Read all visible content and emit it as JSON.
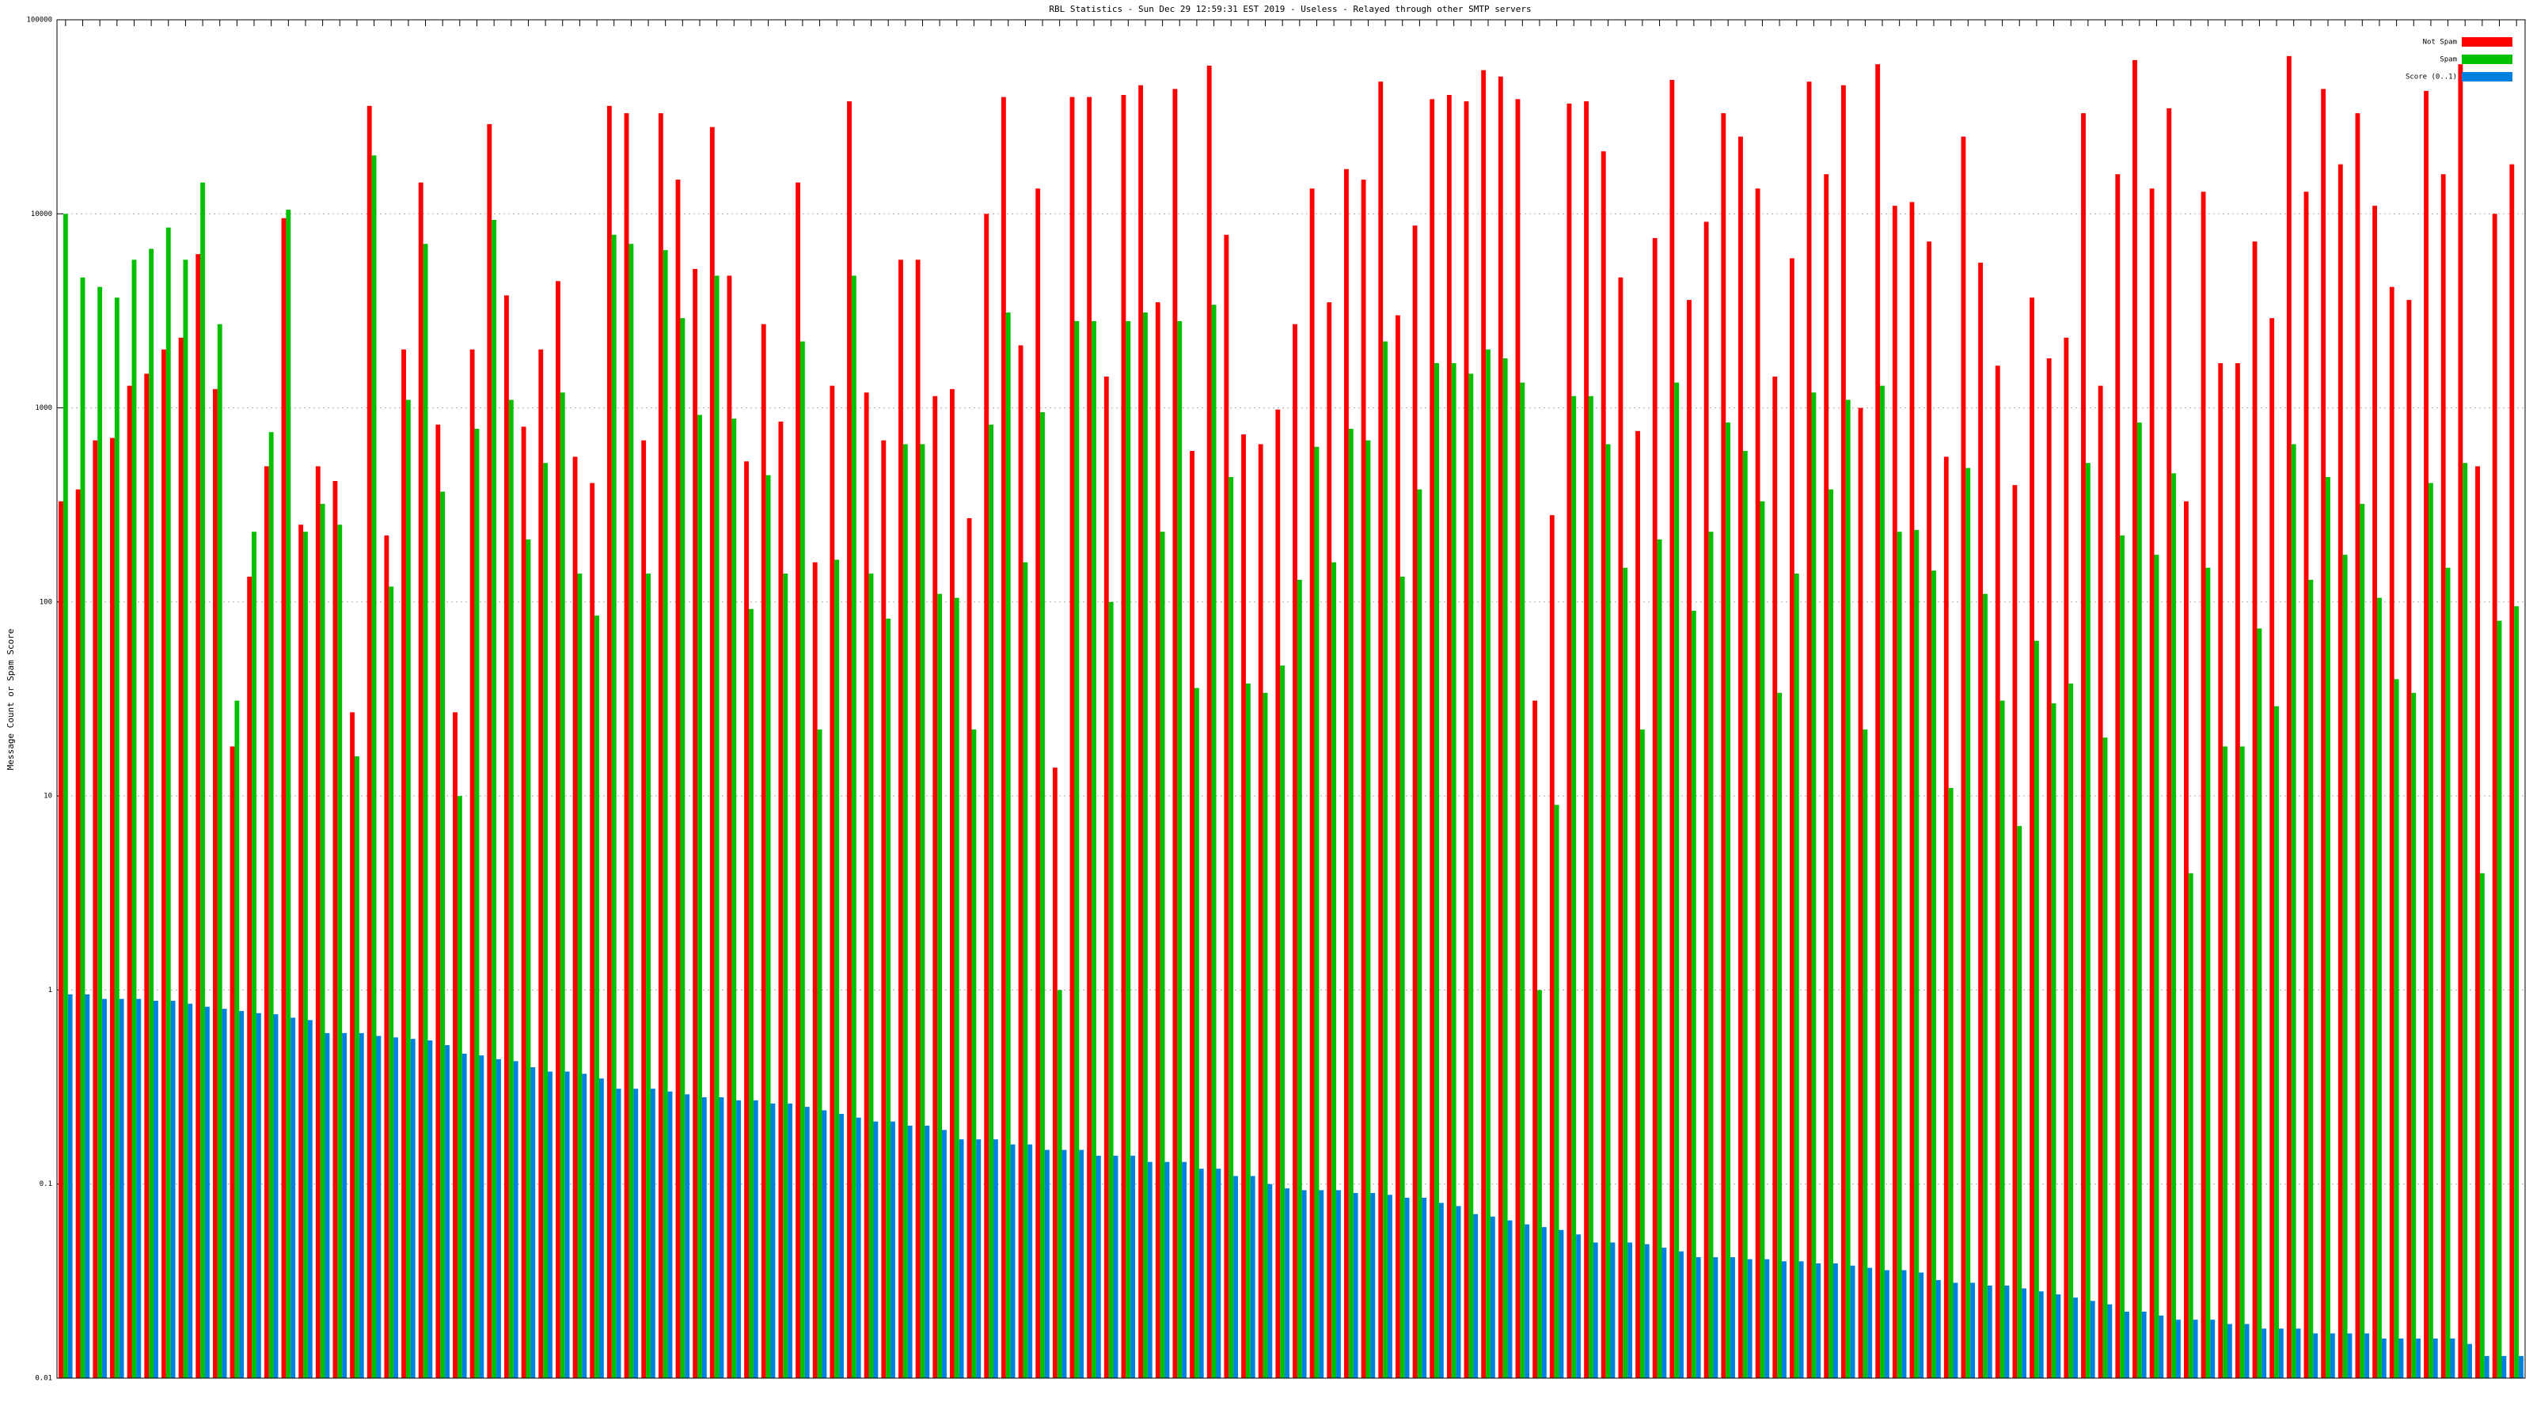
{
  "chart_data": {
    "type": "bar",
    "title": "RBL Statistics - Sun Dec 29 12:59:31 EST 2019 - Useless - Relayed through other SMTP servers",
    "y_label": "Message Count or Spam Score",
    "log_scale": true,
    "grid": true,
    "legend": "top-right",
    "ylim": [
      0.01,
      100000
    ],
    "yticks": [
      0.01,
      0.1,
      1,
      10,
      100,
      1000,
      10000,
      100000
    ],
    "categories": [
      null,
      null,
      null,
      null,
      null,
      null,
      null,
      null,
      null,
      null,
      null,
      null,
      null,
      null,
      null,
      null,
      null,
      null,
      null,
      null,
      null,
      null,
      null,
      null,
      null,
      null,
      null,
      null,
      null,
      null,
      null,
      null,
      null,
      null,
      null,
      null,
      null,
      null,
      null,
      null,
      null,
      null,
      null,
      null,
      null,
      null,
      null,
      null,
      null,
      null,
      null,
      null,
      null,
      null,
      null,
      null,
      null,
      null,
      null,
      null,
      null,
      null,
      null,
      null,
      null,
      null,
      null,
      null,
      null,
      null,
      null,
      null,
      null,
      null,
      null,
      null,
      null,
      null,
      null,
      null,
      null,
      null,
      null,
      null,
      null,
      null,
      null,
      null,
      null,
      null,
      null,
      null,
      null,
      null,
      null,
      null,
      null,
      null,
      null,
      null,
      null,
      null,
      null,
      null,
      null,
      null,
      null,
      null,
      null,
      null,
      null,
      null,
      null,
      null,
      null,
      null,
      null,
      null,
      null,
      null,
      null,
      null,
      null,
      null,
      null,
      null,
      null,
      null,
      null,
      null,
      null,
      null,
      null,
      null,
      null,
      null,
      null,
      null,
      null,
      null,
      null,
      null,
      null,
      null
    ],
    "series": [
      {
        "name": "Not Spam",
        "color": "#ff0000",
        "values": [
          330,
          380,
          680,
          700,
          1300,
          1500,
          2000,
          2300,
          6200,
          1250,
          18,
          135,
          500,
          9500,
          250,
          500,
          420,
          27,
          36000,
          220,
          2000,
          14500,
          820,
          27,
          2000,
          29000,
          3800,
          800,
          2000,
          4500,
          560,
          410,
          36000,
          33000,
          680,
          33000,
          15000,
          5200,
          28000,
          4800,
          530,
          2700,
          850,
          14500,
          160,
          1300,
          38000,
          1200,
          680,
          5800,
          5800,
          1150,
          1250,
          270,
          10000,
          40000,
          2100,
          13500,
          14,
          40000,
          40000,
          1450,
          41000,
          46000,
          3500,
          44000,
          600,
          58000,
          7800,
          730,
          650,
          980,
          2700,
          13500,
          3500,
          17000,
          15000,
          48000,
          3000,
          8700,
          39000,
          41000,
          38000,
          55000,
          51000,
          39000,
          31,
          280,
          37000,
          38000,
          21000,
          4700,
          760,
          7500,
          49000,
          3600,
          9100,
          33000,
          25000,
          13500,
          1450,
          5900,
          48000,
          16000,
          46000,
          1000,
          59000,
          11000,
          11500,
          7200,
          560,
          25000,
          5600,
          1650,
          400,
          3700,
          1800,
          2300,
          33000,
          1300,
          16000,
          62000,
          13500,
          35000,
          330,
          13000,
          1700,
          1700,
          7200,
          2900,
          65000,
          13000,
          44000,
          18000,
          33000,
          11000,
          4200,
          3600,
          43000,
          16000,
          59000,
          500,
          10000,
          18000
        ]
      },
      {
        "name": "Spam",
        "color": "#00c000",
        "values": [
          10000,
          4700,
          4200,
          3700,
          5800,
          6600,
          8500,
          5800,
          14500,
          2700,
          31,
          230,
          750,
          10500,
          230,
          320,
          250,
          16,
          20000,
          120,
          1100,
          7000,
          370,
          10,
          780,
          9300,
          1100,
          210,
          520,
          1200,
          140,
          85,
          7800,
          7000,
          140,
          6500,
          2900,
          920,
          4800,
          880,
          92,
          450,
          140,
          2200,
          22,
          165,
          4800,
          140,
          82,
          650,
          650,
          110,
          105,
          22,
          820,
          3100,
          160,
          950,
          1,
          2800,
          2800,
          100,
          2800,
          3100,
          230,
          2800,
          36,
          3400,
          440,
          38,
          34,
          47,
          130,
          630,
          160,
          780,
          680,
          2200,
          135,
          380,
          1700,
          1700,
          1500,
          2000,
          1800,
          1350,
          1,
          9,
          1150,
          1150,
          650,
          150,
          22,
          210,
          1350,
          90,
          230,
          840,
          600,
          330,
          34,
          140,
          1200,
          380,
          1100,
          22,
          1300,
          230,
          235,
          145,
          11,
          490,
          110,
          31,
          7,
          63,
          30,
          38,
          520,
          20,
          220,
          840,
          175,
          460,
          4,
          150,
          18,
          18,
          73,
          29,
          650,
          130,
          440,
          175,
          320,
          105,
          40,
          34,
          410,
          150,
          520,
          4,
          80,
          95
        ]
      },
      {
        "name": "Score (0..1)",
        "color": "#0080e0",
        "values": [
          0.95,
          0.95,
          0.9,
          0.9,
          0.9,
          0.88,
          0.88,
          0.85,
          0.82,
          0.8,
          0.78,
          0.76,
          0.75,
          0.72,
          0.7,
          0.6,
          0.6,
          0.6,
          0.58,
          0.57,
          0.56,
          0.55,
          0.52,
          0.47,
          0.46,
          0.44,
          0.43,
          0.4,
          0.38,
          0.38,
          0.37,
          0.35,
          0.31,
          0.31,
          0.31,
          0.3,
          0.29,
          0.28,
          0.28,
          0.27,
          0.27,
          0.26,
          0.26,
          0.25,
          0.24,
          0.23,
          0.22,
          0.21,
          0.21,
          0.2,
          0.2,
          0.19,
          0.17,
          0.17,
          0.17,
          0.16,
          0.16,
          0.15,
          0.15,
          0.15,
          0.14,
          0.14,
          0.14,
          0.13,
          0.13,
          0.13,
          0.12,
          0.12,
          0.11,
          0.11,
          0.1,
          0.095,
          0.093,
          0.093,
          0.093,
          0.09,
          0.09,
          0.088,
          0.085,
          0.085,
          0.08,
          0.077,
          0.07,
          0.068,
          0.065,
          0.062,
          0.06,
          0.058,
          0.055,
          0.05,
          0.05,
          0.05,
          0.049,
          0.047,
          0.045,
          0.042,
          0.042,
          0.042,
          0.041,
          0.041,
          0.04,
          0.04,
          0.039,
          0.039,
          0.038,
          0.037,
          0.036,
          0.036,
          0.035,
          0.032,
          0.031,
          0.031,
          0.03,
          0.03,
          0.029,
          0.028,
          0.027,
          0.026,
          0.025,
          0.024,
          0.022,
          0.022,
          0.021,
          0.02,
          0.02,
          0.02,
          0.019,
          0.019,
          0.018,
          0.018,
          0.018,
          0.017,
          0.017,
          0.017,
          0.017,
          0.016,
          0.016,
          0.016,
          0.016,
          0.016,
          0.015,
          0.013,
          0.013,
          0.013
        ]
      }
    ]
  }
}
